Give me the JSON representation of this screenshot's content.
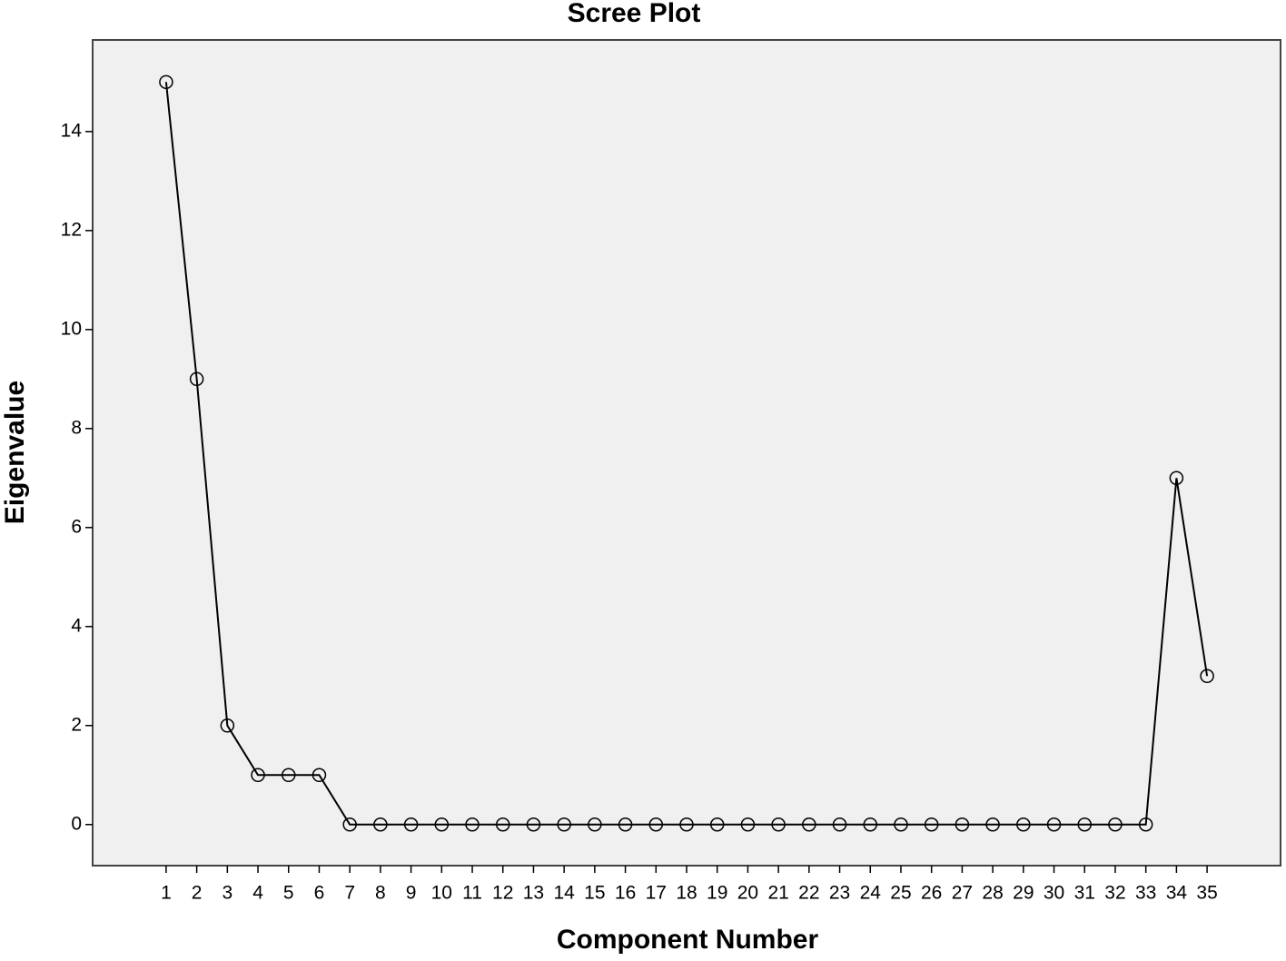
{
  "chart_data": {
    "type": "line",
    "title": "Scree Plot",
    "x_label": "Component Number",
    "y_label": "Eigenvalue",
    "x": [
      1,
      2,
      3,
      4,
      5,
      6,
      7,
      8,
      9,
      10,
      11,
      12,
      13,
      14,
      15,
      16,
      17,
      18,
      19,
      20,
      21,
      22,
      23,
      24,
      25,
      26,
      27,
      28,
      29,
      30,
      31,
      32,
      33,
      34,
      35
    ],
    "values": [
      15,
      9,
      2,
      1,
      1,
      1,
      0,
      0,
      0,
      0,
      0,
      0,
      0,
      0,
      0,
      0,
      0,
      0,
      0,
      0,
      0,
      0,
      0,
      0,
      0,
      0,
      0,
      0,
      0,
      0,
      0,
      0,
      0,
      7,
      3
    ],
    "color": "#000000",
    "marker": "circle",
    "xlim": [
      -1.4,
      37.4
    ],
    "xticks": [
      1,
      2,
      3,
      4,
      5,
      6,
      7,
      8,
      9,
      10,
      11,
      12,
      13,
      14,
      15,
      16,
      17,
      18,
      19,
      20,
      21,
      22,
      23,
      24,
      25,
      26,
      27,
      28,
      29,
      30,
      31,
      32,
      33,
      34,
      35
    ],
    "ylim": [
      -0.83,
      15.85
    ],
    "yticks": [
      0,
      2,
      4,
      6,
      8,
      10,
      12,
      14
    ],
    "grid": false
  }
}
